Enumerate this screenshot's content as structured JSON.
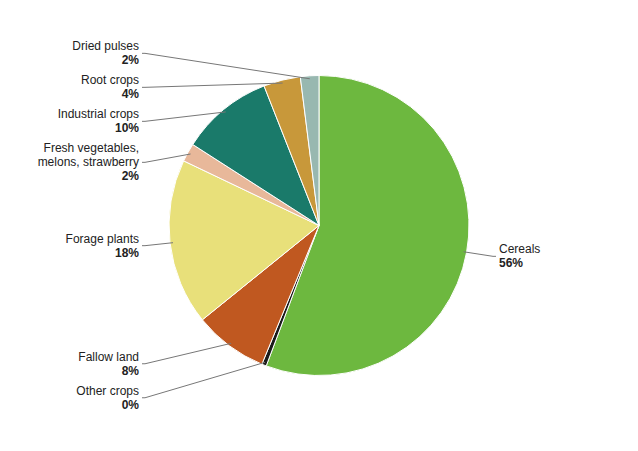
{
  "chart_data": {
    "type": "pie",
    "categories": [
      "Cereals",
      "Other crops",
      "Fallow land",
      "Forage plants",
      "Fresh vegetables,\nmelons, strawberry",
      "Industrial crops",
      "Root crops",
      "Dried pulses"
    ],
    "values": [
      56,
      0.5,
      8,
      18,
      2,
      10,
      4,
      2
    ],
    "value_labels": [
      "56%",
      "0%",
      "8%",
      "18%",
      "2%",
      "10%",
      "4%",
      "2%"
    ],
    "colors": [
      "#6db83f",
      "#1a1a1a",
      "#c05820",
      "#e8e07a",
      "#e8b89a",
      "#1a7a6a",
      "#c8983a",
      "#98b8b0"
    ],
    "data_labels": true
  }
}
